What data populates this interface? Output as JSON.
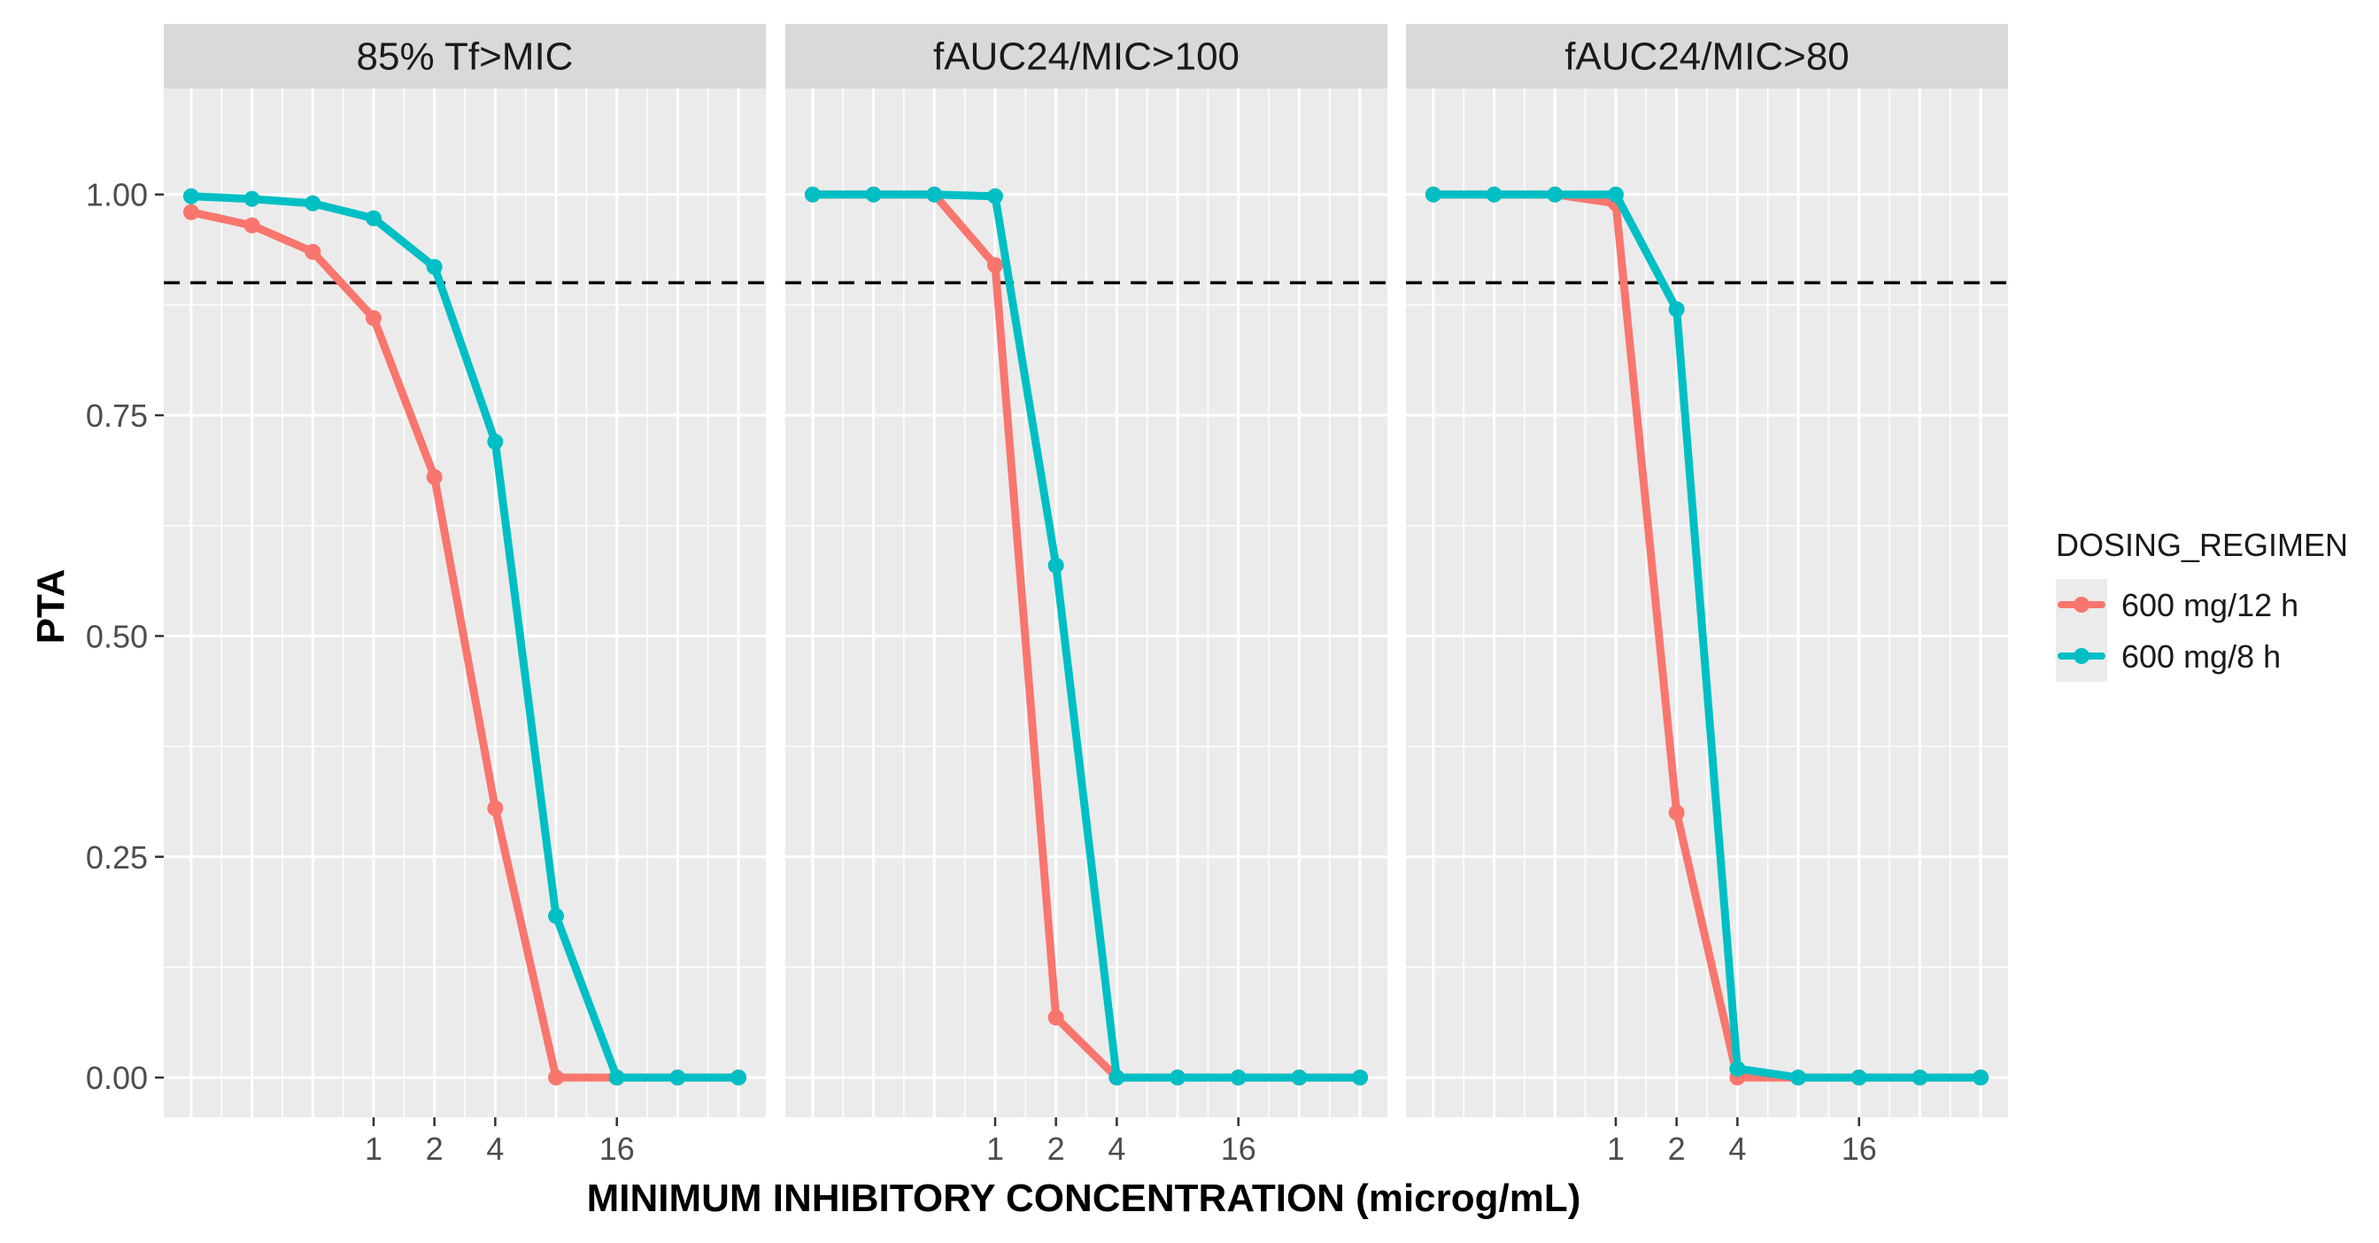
{
  "chart_data": {
    "type": "line",
    "facet_labels": [
      "85% Tf>MIC",
      "fAUC24/MIC>100",
      "fAUC24/MIC>80"
    ],
    "x": [
      0.125,
      0.25,
      0.5,
      1,
      2,
      4,
      8,
      16,
      32,
      64
    ],
    "x_ticks": [
      1,
      2,
      4,
      16
    ],
    "x_tick_labels": [
      "1",
      "2",
      "4",
      "16"
    ],
    "y_ticks": [
      0,
      0.25,
      0.5,
      0.75,
      1.0
    ],
    "y_tick_labels": [
      "0.00",
      "0.25",
      "0.50",
      "0.75",
      "1.00"
    ],
    "ylim": [
      -0.045,
      1.12
    ],
    "xlabel": "MINIMUM INHIBITORY CONCENTRATION (microg/mL)",
    "ylabel": "PTA",
    "reference_line": 0.9,
    "legend": {
      "title": "DOSING_REGIMEN",
      "position": "right",
      "entries": [
        "600 mg/12 h",
        "600 mg/8 h"
      ]
    },
    "series": [
      {
        "name": "600 mg/12 h",
        "color": "#F8766D",
        "panels": [
          [
            0.98,
            0.965,
            0.935,
            0.86,
            0.68,
            0.305,
            0.0,
            0.0,
            0.0,
            0.0
          ],
          [
            1.0,
            1.0,
            1.0,
            0.92,
            0.068,
            0.0,
            0.0,
            0.0,
            0.0,
            0.0
          ],
          [
            1.0,
            1.0,
            1.0,
            0.99,
            0.3,
            0.0,
            0.0,
            0.0,
            0.0,
            0.0
          ]
        ]
      },
      {
        "name": "600 mg/8 h",
        "color": "#00BFC4",
        "panels": [
          [
            0.998,
            0.995,
            0.99,
            0.973,
            0.918,
            0.72,
            0.183,
            0.0,
            0.0,
            0.0
          ],
          [
            1.0,
            1.0,
            1.0,
            0.998,
            0.58,
            0.0,
            0.0,
            0.0,
            0.0,
            0.0
          ],
          [
            1.0,
            1.0,
            1.0,
            1.0,
            0.87,
            0.01,
            0.0,
            0.0,
            0.0,
            0.0
          ]
        ]
      }
    ]
  }
}
